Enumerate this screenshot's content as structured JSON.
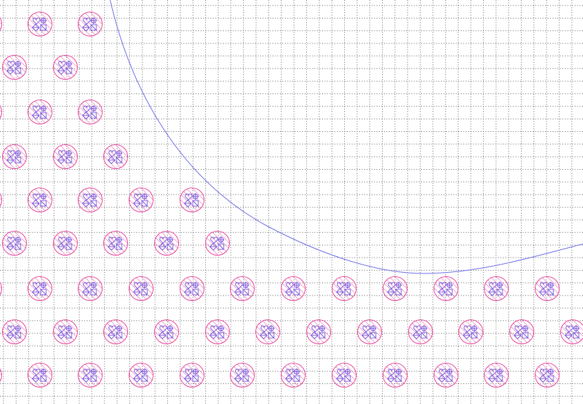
{
  "view": {
    "kind": "layout-viewer",
    "background_color": "#ffffff",
    "grid_color": "#555555",
    "grid_style": "dotted"
  },
  "route": {
    "name": "curved-trace",
    "color": "#6a6ae8"
  },
  "pads": {
    "ring_color": "#e8409a",
    "hatch_color": "#e8409a",
    "symbol_color": "#7a5ae0",
    "icon": "bump-pad-cell-icon",
    "count": 57
  }
}
